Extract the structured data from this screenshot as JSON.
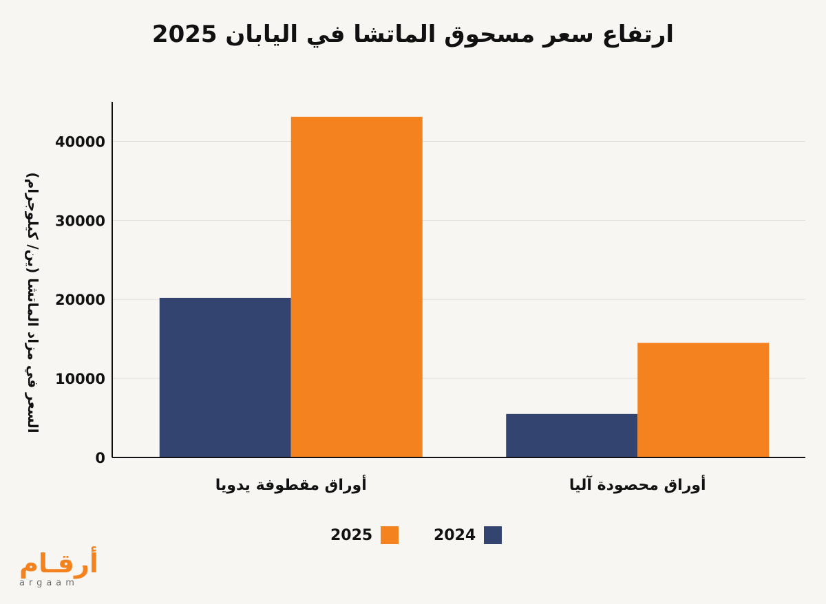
{
  "chart_data": {
    "type": "bar",
    "title": "ارتفاع سعر مسحوق الماتشا في اليابان 2025",
    "ylabel": "السعر في مزاد الماتشا (ين/ كيلوجرام)",
    "xlabel": "",
    "categories": [
      "أوراق مقطوفة يدويا",
      "أوراق محصودة آليا"
    ],
    "series": [
      {
        "name": "2024",
        "color": "#334470",
        "values": [
          20200,
          5500
        ]
      },
      {
        "name": "2025",
        "color": "#f4821f",
        "values": [
          43100,
          14500
        ]
      }
    ],
    "yticks": [
      0,
      10000,
      20000,
      30000,
      40000
    ],
    "ylim": [
      0,
      45000
    ],
    "grid": true,
    "legend_position": "bottom"
  },
  "legend": [
    {
      "label": "2025",
      "color": "#f4821f"
    },
    {
      "label": "2024",
      "color": "#334470"
    }
  ],
  "logo": {
    "arabic": "أرقـام",
    "latin": "argaam"
  }
}
